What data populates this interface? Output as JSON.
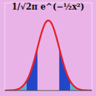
{
  "chart_data": {
    "type": "area",
    "title": "1/√2π e^(−½x²)",
    "x": [
      -4,
      -3.75,
      -3.5,
      -3.25,
      -3,
      -2.75,
      -2.5,
      -2.25,
      -2,
      -1.75,
      -1.5,
      -1.25,
      -1,
      -0.75,
      -0.5,
      -0.25,
      0,
      0.25,
      0.5,
      0.75,
      1,
      1.25,
      1.5,
      1.75,
      2,
      2.25,
      2.5,
      2.75,
      3,
      3.25,
      3.5,
      3.75,
      4
    ],
    "series": [
      {
        "type": "area",
        "color": "#5fb0d8",
        "values": [
          0,
          0,
          0.001,
          0.002,
          0.004,
          0.009,
          0.018,
          0.032,
          0.054,
          null,
          null,
          null,
          null,
          null,
          null,
          null,
          null,
          null,
          null,
          null,
          null,
          null,
          null,
          null,
          0.054,
          0.032,
          0.018,
          0.009,
          0.004,
          0.002,
          0.001,
          0,
          0
        ]
      },
      {
        "type": "area",
        "color": "#2346c8",
        "values": [
          null,
          null,
          null,
          null,
          null,
          null,
          null,
          null,
          0.054,
          0.086,
          0.13,
          0.183,
          0.242,
          null,
          null,
          null,
          null,
          null,
          null,
          null,
          0.242,
          0.183,
          0.13,
          0.086,
          0.054,
          null,
          null,
          null,
          null,
          null,
          null,
          null,
          null
        ]
      },
      {
        "type": "line",
        "color": "#e8202a",
        "values": [
          0,
          0,
          0.001,
          0.002,
          0.004,
          0.009,
          0.018,
          0.032,
          0.054,
          0.086,
          0.13,
          0.183,
          0.242,
          0.301,
          0.352,
          0.387,
          0.399,
          0.387,
          0.352,
          0.301,
          0.242,
          0.183,
          0.13,
          0.086,
          0.054,
          0.032,
          0.018,
          0.009,
          0.004,
          0.002,
          0.001,
          0,
          0
        ]
      }
    ],
    "xlim": [
      -4,
      4
    ],
    "xticks": [
      -4,
      -3.5,
      -3,
      -2.5,
      -2,
      -1.5,
      -1,
      -0.5,
      0,
      0.5,
      1,
      1.5,
      2,
      2.5,
      3,
      3.5,
      4
    ],
    "ylim": [
      0,
      0.5
    ],
    "yticks": [
      0,
      0.1,
      0.2,
      0.3,
      0.4,
      0.5
    ],
    "grid": true,
    "tick_labels": false
  }
}
